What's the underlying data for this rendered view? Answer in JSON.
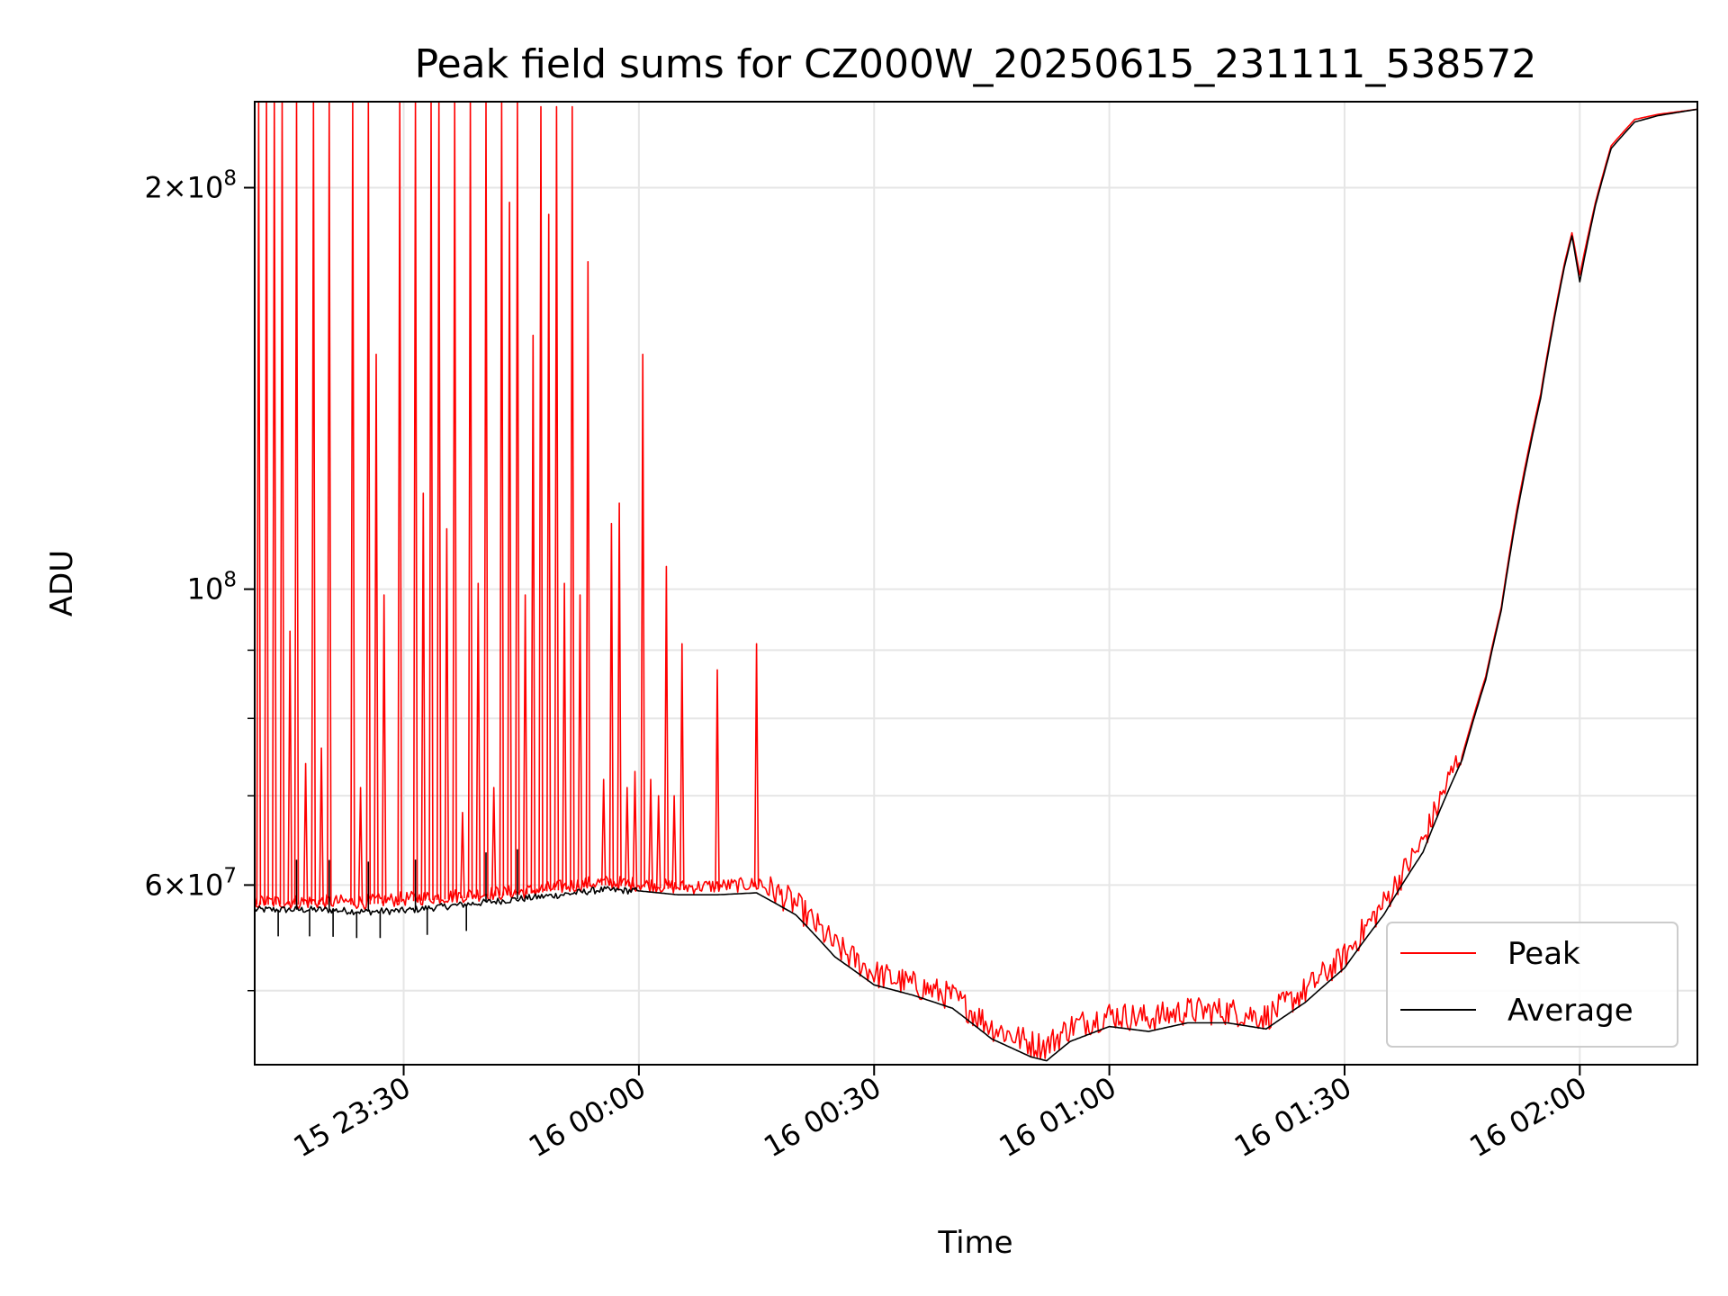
{
  "chart_data": {
    "type": "line",
    "title": "Peak field sums for CZ000W_20250615_231111_538572",
    "xlabel": "Time",
    "ylabel": "ADU",
    "y_scale": "log",
    "x_range": [
      "2025-06-15 23:11:00",
      "2025-06-16 02:15:00"
    ],
    "ylim": [
      44000000,
      232000000
    ],
    "x_ticks": [
      {
        "t": "2025-06-15 23:30",
        "label": "15 23:30"
      },
      {
        "t": "2025-06-16 00:00",
        "label": "16 00:00"
      },
      {
        "t": "2025-06-16 00:30",
        "label": "16 00:30"
      },
      {
        "t": "2025-06-16 01:00",
        "label": "16 01:00"
      },
      {
        "t": "2025-06-16 01:30",
        "label": "16 01:30"
      },
      {
        "t": "2025-06-16 02:00",
        "label": "16 02:00"
      }
    ],
    "y_major_ticks": [
      {
        "value": 60000000,
        "mantissa": "6",
        "exponent": "7"
      },
      {
        "value": 100000000,
        "mantissa": "",
        "exponent": "8"
      },
      {
        "value": 200000000,
        "mantissa": "2",
        "exponent": "8"
      }
    ],
    "y_minor_gridlines": [
      50000000,
      70000000,
      80000000,
      90000000
    ],
    "grid": true,
    "legend_position": "lower-right",
    "series": [
      {
        "name": "Peak",
        "color": "#ff0000",
        "x": [
          "23:11",
          "23:15",
          "23:20",
          "23:25",
          "23:30",
          "23:35",
          "23:40",
          "23:45",
          "23:50",
          "23:55",
          "00:00",
          "00:05",
          "00:10",
          "00:15",
          "00:20",
          "00:25",
          "00:30",
          "00:35",
          "00:40",
          "00:45",
          "00:50",
          "00:52",
          "00:55",
          "01:00",
          "01:05",
          "01:10",
          "01:15",
          "01:20",
          "01:25",
          "01:30",
          "01:35",
          "01:40",
          "01:45",
          "01:48",
          "01:50",
          "01:52",
          "01:55",
          "01:58",
          "01:59",
          "02:00",
          "02:02",
          "02:04",
          "02:07",
          "02:10",
          "02:15"
        ],
        "y": [
          58000000,
          58000000,
          58000000,
          58000000,
          58300000,
          58500000,
          58800000,
          59000000,
          59500000,
          60000000,
          59800000,
          59500000,
          59600000,
          59800000,
          57500000,
          53500000,
          51000000,
          50000000,
          49000000,
          46500000,
          45200000,
          45000000,
          46500000,
          47500000,
          47200000,
          47800000,
          47800000,
          47300000,
          49500000,
          52500000,
          57500000,
          64000000,
          75000000,
          86000000,
          97000000,
          115000000,
          140000000,
          175000000,
          185000000,
          172000000,
          195000000,
          215000000,
          225000000,
          227000000,
          229000000
        ],
        "spikes": [
          {
            "t": "23:11:30",
            "v": 232000000
          },
          {
            "t": "23:12:30",
            "v": 232000000
          },
          {
            "t": "23:13:30",
            "v": 232000000
          },
          {
            "t": "23:14:30",
            "v": 232000000
          },
          {
            "t": "23:15:30",
            "v": 93000000
          },
          {
            "t": "23:16:20",
            "v": 232000000
          },
          {
            "t": "23:17:30",
            "v": 74000000
          },
          {
            "t": "23:18:30",
            "v": 232000000
          },
          {
            "t": "23:19:30",
            "v": 76000000
          },
          {
            "t": "23:20:30",
            "v": 232000000
          },
          {
            "t": "23:23:30",
            "v": 232000000
          },
          {
            "t": "23:24:30",
            "v": 71000000
          },
          {
            "t": "23:25:30",
            "v": 232000000
          },
          {
            "t": "23:26:30",
            "v": 150000000
          },
          {
            "t": "23:27:30",
            "v": 99000000
          },
          {
            "t": "23:29:30",
            "v": 232000000
          },
          {
            "t": "23:31:30",
            "v": 232000000
          },
          {
            "t": "23:32:30",
            "v": 118000000
          },
          {
            "t": "23:33:30",
            "v": 232000000
          },
          {
            "t": "23:34:30",
            "v": 232000000
          },
          {
            "t": "23:35:30",
            "v": 111000000
          },
          {
            "t": "23:36:30",
            "v": 232000000
          },
          {
            "t": "23:37:30",
            "v": 68000000
          },
          {
            "t": "23:38:30",
            "v": 232000000
          },
          {
            "t": "23:39:30",
            "v": 101000000
          },
          {
            "t": "23:40:30",
            "v": 232000000
          },
          {
            "t": "23:41:30",
            "v": 71000000
          },
          {
            "t": "23:42:30",
            "v": 232000000
          },
          {
            "t": "23:43:30",
            "v": 195000000
          },
          {
            "t": "23:44:30",
            "v": 232000000
          },
          {
            "t": "23:45:30",
            "v": 99000000
          },
          {
            "t": "23:46:30",
            "v": 155000000
          },
          {
            "t": "23:47:30",
            "v": 230000000
          },
          {
            "t": "23:48:30",
            "v": 191000000
          },
          {
            "t": "23:49:30",
            "v": 230000000
          },
          {
            "t": "23:50:30",
            "v": 101000000
          },
          {
            "t": "23:51:30",
            "v": 230000000
          },
          {
            "t": "23:52:30",
            "v": 99000000
          },
          {
            "t": "23:53:30",
            "v": 176000000
          },
          {
            "t": "23:55:30",
            "v": 72000000
          },
          {
            "t": "23:56:30",
            "v": 112000000
          },
          {
            "t": "23:57:30",
            "v": 116000000
          },
          {
            "t": "23:58:30",
            "v": 71000000
          },
          {
            "t": "23:59:30",
            "v": 73000000
          },
          {
            "t": "00:00:30",
            "v": 150000000
          },
          {
            "t": "00:01:30",
            "v": 72000000
          },
          {
            "t": "00:02:30",
            "v": 70000000
          },
          {
            "t": "00:03:30",
            "v": 104000000
          },
          {
            "t": "00:04:30",
            "v": 70000000
          },
          {
            "t": "00:05:30",
            "v": 91000000
          },
          {
            "t": "00:10:00",
            "v": 87000000
          },
          {
            "t": "00:15:00",
            "v": 91000000
          }
        ]
      },
      {
        "name": "Average",
        "color": "#000000",
        "x": [
          "23:11",
          "23:15",
          "23:20",
          "23:25",
          "23:30",
          "23:35",
          "23:40",
          "23:45",
          "23:50",
          "23:55",
          "00:00",
          "00:05",
          "00:10",
          "00:15",
          "00:20",
          "00:25",
          "00:30",
          "00:35",
          "00:40",
          "00:45",
          "00:50",
          "00:52",
          "00:55",
          "01:00",
          "01:05",
          "01:10",
          "01:15",
          "01:20",
          "01:25",
          "01:30",
          "01:35",
          "01:40",
          "01:45",
          "01:48",
          "01:50",
          "01:52",
          "01:55",
          "01:58",
          "01:59",
          "02:00",
          "02:02",
          "02:04",
          "02:07",
          "02:10",
          "02:15"
        ],
        "y": [
          57500000,
          57500000,
          57500000,
          57300000,
          57400000,
          57800000,
          58200000,
          58600000,
          59000000,
          59500000,
          59400000,
          59000000,
          59000000,
          59200000,
          57000000,
          53000000,
          50500000,
          49600000,
          48500000,
          46000000,
          44600000,
          44300000,
          45800000,
          47000000,
          46600000,
          47300000,
          47300000,
          46800000,
          49000000,
          52000000,
          57000000,
          63500000,
          74500000,
          85500000,
          96500000,
          114000000,
          139000000,
          174000000,
          184000000,
          170000000,
          194000000,
          214000000,
          224000000,
          226500000,
          229000000
        ]
      }
    ]
  }
}
